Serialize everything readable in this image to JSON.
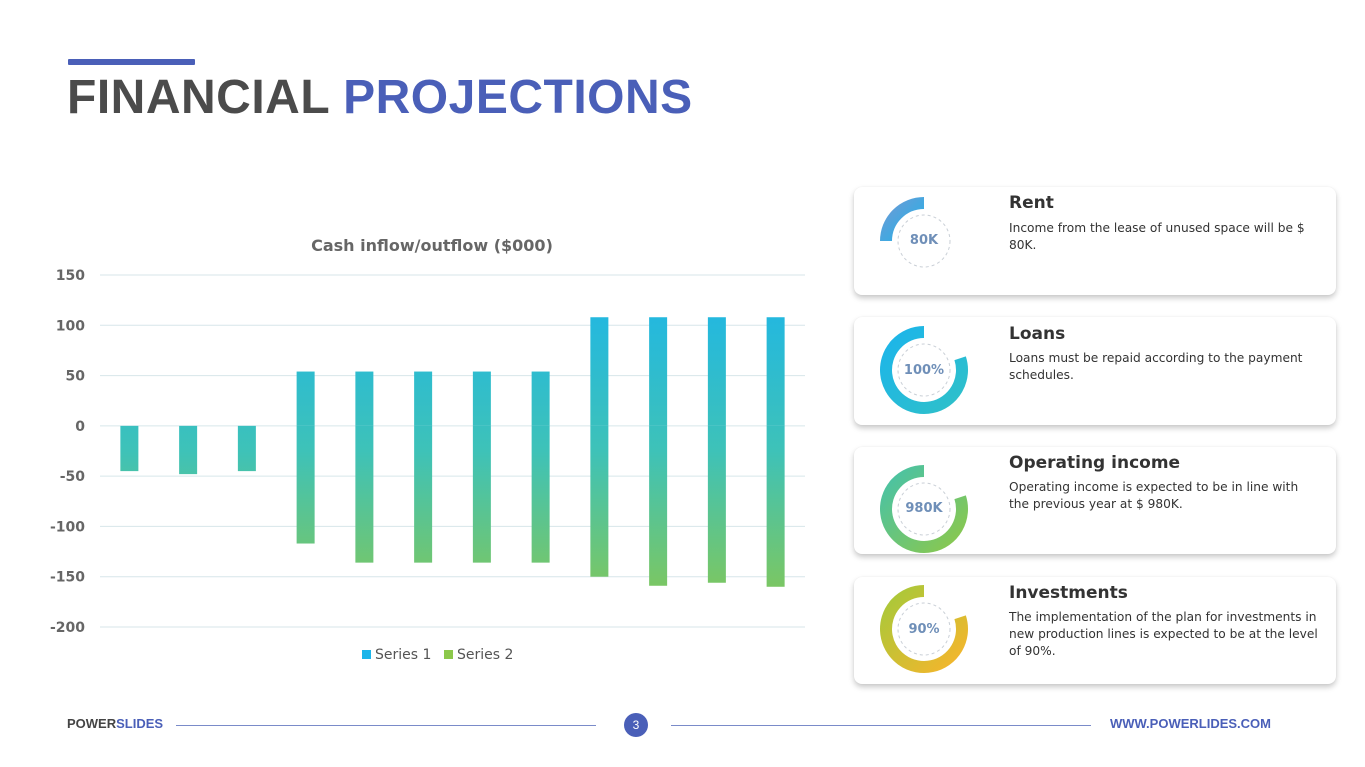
{
  "slide": {
    "title_part1": "FINANCIAL",
    "title_part2": "PROJECTIONS",
    "accent_color": "#4a5fb8",
    "title_color": "#4b4b4b"
  },
  "chart_data": {
    "type": "bar",
    "title": "Cash inflow/outflow ($000)",
    "xlabel": "",
    "ylabel": "",
    "ylim": [
      -200,
      150
    ],
    "yticks": [
      150,
      100,
      50,
      0,
      -50,
      -100,
      -150,
      -200
    ],
    "ytick_labels": [
      "150",
      "100",
      "50",
      "0",
      "-50",
      "-100",
      "-150",
      "-200"
    ],
    "grid": true,
    "legend_position": "bottom",
    "stacked": true,
    "categories": [
      "",
      "",
      "",
      "",
      "",
      "",
      "",
      "",
      "",
      "",
      "",
      ""
    ],
    "series": [
      {
        "name": "Series 1",
        "values": [
          0,
          0,
          0,
          54,
          54,
          54,
          54,
          54,
          108,
          108,
          108,
          108
        ],
        "color": "#1cb5ea"
      },
      {
        "name": "Series 2",
        "values": [
          -45,
          -48,
          -45,
          -117,
          -136,
          -136,
          -136,
          -136,
          -150,
          -159,
          -156,
          -160
        ],
        "color": "#8cc84b"
      }
    ]
  },
  "cards": [
    {
      "title": "Rent",
      "description": "Income from the lease of unused space will be $ 80K.",
      "value_label": "80K",
      "ring_fraction": 0.25,
      "color_start": "#6a9bd6",
      "color_end": "#1cb5ea"
    },
    {
      "title": "Loans",
      "description": "Loans must be repaid according to the payment schedules.",
      "value_label": "100%",
      "ring_fraction": 0.8,
      "color_start": "#1cb5ea",
      "color_end": "#2fc0c9"
    },
    {
      "title": "Operating income",
      "description": "Operating income is expected to be in line with the previous year at $ 980K.",
      "value_label": "980K",
      "ring_fraction": 0.8,
      "color_start": "#47c2a8",
      "color_end": "#8cc84b"
    },
    {
      "title": "Investments",
      "description": "The implementation of the plan for investments in new production lines is expected to be at the level of 90%.",
      "value_label": "90%",
      "ring_fraction": 0.8,
      "color_start": "#a6c93a",
      "color_end": "#f7b52c"
    }
  ],
  "footer": {
    "brand_part1": "POWER",
    "brand_part2": "SLIDES",
    "page_number": "3",
    "url": "WWW.POWERLIDES.COM"
  }
}
